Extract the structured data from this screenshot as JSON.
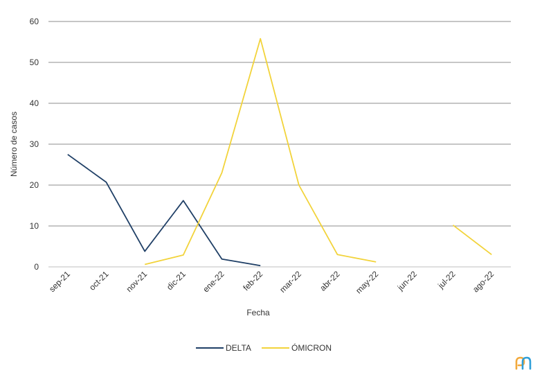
{
  "chart_data": {
    "type": "line",
    "title": "",
    "xlabel": "Fecha",
    "ylabel": "Número de casos",
    "categories": [
      "sep-21",
      "oct-21",
      "nov-21",
      "dic-21",
      "ene-22",
      "feb-22",
      "mar-22",
      "abr-22",
      "may-22",
      "jun-22",
      "jul-22",
      "ago-22"
    ],
    "ylim": [
      0,
      60
    ],
    "yticks": [
      "0",
      "10",
      "20",
      "30",
      "40",
      "50",
      "60"
    ],
    "grid": true,
    "legend_position": "bottom",
    "series": [
      {
        "name": "DELTA",
        "color": "#1f3f66",
        "values": [
          27.5,
          20.7,
          3.8,
          16.2,
          1.9,
          0.3,
          null,
          null,
          null,
          null,
          null,
          null
        ]
      },
      {
        "name": "ÓMICRON",
        "color": "#f2d33a",
        "values": [
          null,
          null,
          0.6,
          2.9,
          23.0,
          55.8,
          20.0,
          3.0,
          1.2,
          null,
          10.2,
          3.0
        ]
      }
    ]
  },
  "logo": {
    "icon": "brand-logo-icon",
    "colors": [
      "#f2a93b",
      "#2f9fd8"
    ]
  }
}
